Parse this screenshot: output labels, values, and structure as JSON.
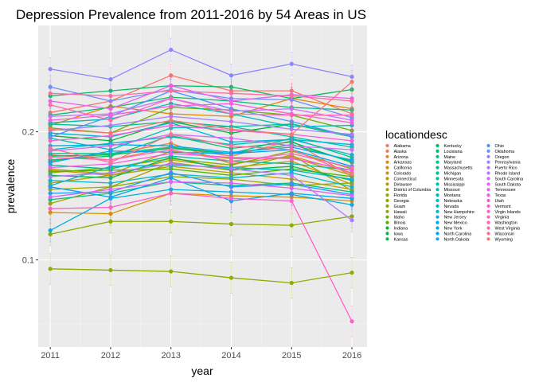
{
  "chart_data": {
    "type": "line",
    "title": "Depression Prevalence from 2011-2016 by 54 Areas in US",
    "xlabel": "year",
    "ylabel": "prevalence",
    "x": [
      2011,
      2012,
      2013,
      2014,
      2015,
      2016
    ],
    "x_ticks": [
      "2011",
      "2012",
      "2013",
      "2014",
      "2015",
      "2016"
    ],
    "y_ticks": [
      {
        "value": 0.1,
        "label": "0.1"
      },
      {
        "value": 0.2,
        "label": "0.2"
      }
    ],
    "ylim": [
      0.032,
      0.283
    ],
    "xlim": [
      2010.8,
      2016.25
    ],
    "grid": true,
    "error_bars": true,
    "legend_position": "right",
    "legend_title": "locationdesc",
    "series": [
      {
        "name": "Alabama",
        "color": "#F8766D",
        "values": [
          0.215,
          0.224,
          0.244,
          0.232,
          0.232,
          0.214
        ]
      },
      {
        "name": "Alaska",
        "color": "#F27D53",
        "values": [
          0.182,
          0.178,
          0.188,
          0.181,
          0.193,
          0.165
        ]
      },
      {
        "name": "Arizona",
        "color": "#EA8331",
        "values": [
          0.177,
          0.183,
          0.191,
          0.175,
          0.181,
          0.168
        ]
      },
      {
        "name": "Arkansas",
        "color": "#E18A00",
        "values": [
          0.205,
          0.22,
          0.214,
          0.212,
          0.226,
          0.218
        ]
      },
      {
        "name": "California",
        "color": "#D89000",
        "values": [
          0.137,
          0.136,
          0.152,
          0.15,
          0.149,
          0.146
        ]
      },
      {
        "name": "Colorado",
        "color": "#CD9600",
        "values": [
          0.17,
          0.166,
          0.178,
          0.172,
          0.177,
          0.159
        ]
      },
      {
        "name": "Connecticut",
        "color": "#C09B00",
        "values": [
          0.16,
          0.166,
          0.173,
          0.168,
          0.163,
          0.155
        ]
      },
      {
        "name": "Delaware",
        "color": "#B3A000",
        "values": [
          0.171,
          0.167,
          0.185,
          0.179,
          0.18,
          0.166
        ]
      },
      {
        "name": "District of Columbia",
        "color": "#A3A500",
        "values": [
          0.155,
          0.157,
          0.176,
          0.17,
          0.182,
          0.154
        ]
      },
      {
        "name": "Florida",
        "color": "#93AA00",
        "values": [
          0.144,
          0.157,
          0.165,
          0.163,
          0.158,
          0.16
        ]
      },
      {
        "name": "Georgia",
        "color": "#7FAE00",
        "values": [
          0.168,
          0.172,
          0.179,
          0.174,
          0.185,
          0.171
        ]
      },
      {
        "name": "Guam",
        "color": "#93AA00",
        "values": [
          0.093,
          0.092,
          0.091,
          0.086,
          0.082,
          0.09
        ]
      },
      {
        "name": "Hawaii",
        "color": "#8AAB00",
        "values": [
          0.12,
          0.13,
          0.13,
          0.128,
          0.127,
          0.134
        ]
      },
      {
        "name": "Idaho",
        "color": "#6BB100",
        "values": [
          0.203,
          0.199,
          0.219,
          0.217,
          0.213,
          0.201
        ]
      },
      {
        "name": "Illinois",
        "color": "#4FB600",
        "values": [
          0.169,
          0.17,
          0.171,
          0.166,
          0.171,
          0.165
        ]
      },
      {
        "name": "Indiana",
        "color": "#00BA38",
        "values": [
          0.197,
          0.193,
          0.208,
          0.199,
          0.206,
          0.196
        ]
      },
      {
        "name": "Iowa",
        "color": "#00BB44",
        "values": [
          0.166,
          0.164,
          0.18,
          0.17,
          0.173,
          0.162
        ]
      },
      {
        "name": "Kansas",
        "color": "#00BC52",
        "values": [
          0.181,
          0.182,
          0.187,
          0.183,
          0.19,
          0.177
        ]
      },
      {
        "name": "Kentucky",
        "color": "#00BE5F",
        "values": [
          0.228,
          0.232,
          0.236,
          0.235,
          0.226,
          0.233
        ]
      },
      {
        "name": "Louisiana",
        "color": "#00BF6A",
        "values": [
          0.178,
          0.181,
          0.197,
          0.187,
          0.192,
          0.176
        ]
      },
      {
        "name": "Maine",
        "color": "#00C076",
        "values": [
          0.213,
          0.219,
          0.227,
          0.224,
          0.219,
          0.217
        ]
      },
      {
        "name": "Maryland",
        "color": "#00C081",
        "values": [
          0.147,
          0.152,
          0.161,
          0.158,
          0.16,
          0.153
        ]
      },
      {
        "name": "Massachusetts",
        "color": "#00C08B",
        "values": [
          0.183,
          0.183,
          0.188,
          0.183,
          0.195,
          0.18
        ]
      },
      {
        "name": "Michigan",
        "color": "#00C096",
        "values": [
          0.206,
          0.204,
          0.208,
          0.204,
          0.206,
          0.197
        ]
      },
      {
        "name": "Minnesota",
        "color": "#00BFA0",
        "values": [
          0.174,
          0.171,
          0.181,
          0.177,
          0.175,
          0.17
        ]
      },
      {
        "name": "Mississippi",
        "color": "#00BEAA",
        "values": [
          0.195,
          0.186,
          0.203,
          0.204,
          0.196,
          0.188
        ]
      },
      {
        "name": "Missouri",
        "color": "#00BDB3",
        "values": [
          0.207,
          0.21,
          0.222,
          0.214,
          0.204,
          0.205
        ]
      },
      {
        "name": "Montana",
        "color": "#00BBBD",
        "values": [
          0.186,
          0.191,
          0.196,
          0.19,
          0.194,
          0.182
        ]
      },
      {
        "name": "Nebraska",
        "color": "#00B9C6",
        "values": [
          0.162,
          0.16,
          0.167,
          0.164,
          0.168,
          0.157
        ]
      },
      {
        "name": "Nevada",
        "color": "#00B6CF",
        "values": [
          0.158,
          0.173,
          0.174,
          0.172,
          0.17,
          0.163
        ]
      },
      {
        "name": "New Hampshire",
        "color": "#00B3D8",
        "values": [
          0.199,
          0.196,
          0.207,
          0.192,
          0.194,
          0.19
        ]
      },
      {
        "name": "New Jersey",
        "color": "#00AFE0",
        "values": [
          0.123,
          0.148,
          0.155,
          0.153,
          0.151,
          0.143
        ]
      },
      {
        "name": "New Mexico",
        "color": "#00ABE8",
        "values": [
          0.189,
          0.19,
          0.189,
          0.184,
          0.188,
          0.178
        ]
      },
      {
        "name": "New York",
        "color": "#00A6EF",
        "values": [
          0.157,
          0.149,
          0.164,
          0.146,
          0.152,
          0.148
        ]
      },
      {
        "name": "North Carolina",
        "color": "#00A1F5",
        "values": [
          0.176,
          0.185,
          0.184,
          0.183,
          0.186,
          0.173
        ]
      },
      {
        "name": "North Dakota",
        "color": "#1E9BFA",
        "values": [
          0.152,
          0.153,
          0.168,
          0.157,
          0.159,
          0.151
        ]
      },
      {
        "name": "Ohio",
        "color": "#4B94FE",
        "values": [
          0.196,
          0.212,
          0.232,
          0.218,
          0.208,
          0.196
        ]
      },
      {
        "name": "Oklahoma",
        "color": "#6E8EFF",
        "values": [
          0.235,
          0.224,
          0.233,
          0.226,
          0.225,
          0.211
        ]
      },
      {
        "name": "Oregon",
        "color": "#8B86FF",
        "values": [
          0.249,
          0.241,
          0.264,
          0.244,
          0.253,
          0.243
        ]
      },
      {
        "name": "Pennsylvania",
        "color": "#A27FFF",
        "values": [
          0.201,
          0.205,
          0.212,
          0.208,
          0.202,
          0.198
        ]
      },
      {
        "name": "Puerto Rico",
        "color": "#B478FF",
        "values": [
          0.165,
          0.168,
          0.175,
          0.171,
          0.166,
          0.131
        ]
      },
      {
        "name": "Rhode Island",
        "color": "#C471FD",
        "values": [
          0.212,
          0.214,
          0.226,
          0.216,
          0.218,
          0.209
        ]
      },
      {
        "name": "South Carolina",
        "color": "#D26BF9",
        "values": [
          0.185,
          0.189,
          0.198,
          0.195,
          0.189,
          0.186
        ]
      },
      {
        "name": "South Dakota",
        "color": "#DE65F4",
        "values": [
          0.149,
          0.155,
          0.161,
          0.16,
          0.156,
          0.15
        ]
      },
      {
        "name": "Tennessee",
        "color": "#E860EE",
        "values": [
          0.224,
          0.218,
          0.236,
          0.224,
          0.229,
          0.226
        ]
      },
      {
        "name": "Texas",
        "color": "#F05DE7",
        "values": [
          0.172,
          0.175,
          0.183,
          0.18,
          0.179,
          0.17
        ]
      },
      {
        "name": "Utah",
        "color": "#F75CDF",
        "values": [
          0.209,
          0.213,
          0.22,
          0.222,
          0.214,
          0.207
        ]
      },
      {
        "name": "Vermont",
        "color": "#FC5DD6",
        "values": [
          0.193,
          0.197,
          0.205,
          0.201,
          0.198,
          0.193
        ]
      },
      {
        "name": "Virgin Islands",
        "color": "#FF60CB",
        "values": [
          0.14,
          0.141,
          0.152,
          0.148,
          0.146,
          0.052
        ]
      },
      {
        "name": "Virginia",
        "color": "#FF64BF",
        "values": [
          0.18,
          0.178,
          0.186,
          0.177,
          0.183,
          0.172
        ]
      },
      {
        "name": "Washington",
        "color": "#FF68B2",
        "values": [
          0.221,
          0.209,
          0.226,
          0.214,
          0.213,
          0.213
        ]
      },
      {
        "name": "West Virginia",
        "color": "#FF6CA4",
        "values": [
          0.23,
          0.228,
          0.232,
          0.23,
          0.228,
          0.224
        ]
      },
      {
        "name": "Wisconsin",
        "color": "#FD7096",
        "values": [
          0.187,
          0.176,
          0.198,
          0.189,
          0.186,
          0.167
        ]
      },
      {
        "name": "Wyoming",
        "color": "#F8766D",
        "values": [
          0.202,
          0.199,
          0.209,
          0.202,
          0.198,
          0.239
        ]
      }
    ]
  }
}
